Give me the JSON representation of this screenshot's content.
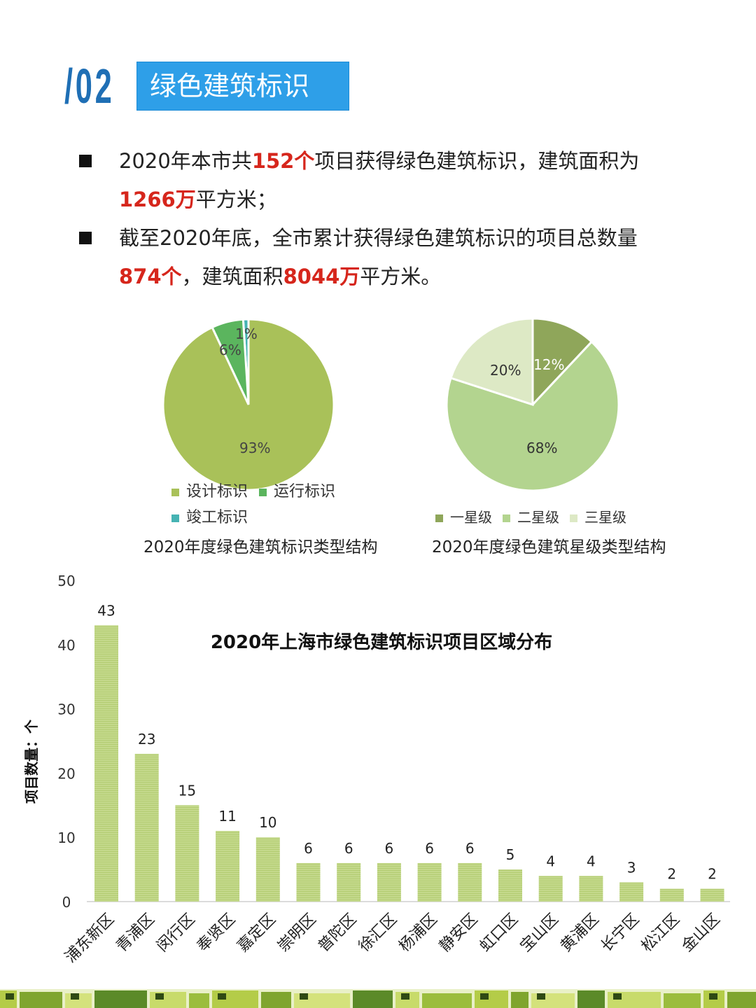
{
  "header": {
    "section_number": "/02",
    "section_title": "绿色建筑标识"
  },
  "paragraphs": [
    {
      "line1_pre": "2020年本市共",
      "line1_hl": "152个",
      "line1_post": "项目获得绿色建筑标识，建筑面积为",
      "line2_hl": "1266万",
      "line2_post": "平方米；"
    },
    {
      "line1": "截至2020年底，全市累计获得绿色建筑标识的项目总数量",
      "line2_hl1": "874个",
      "line2_mid": "，建筑面积",
      "line2_hl2": "8044万",
      "line2_post": "平方米。"
    }
  ],
  "chart_data": [
    {
      "type": "pie",
      "title": "2020年度绿色建筑标识类型结构",
      "slices": [
        {
          "name": "设计标识",
          "value": 93,
          "label": "93%",
          "color": "#a9c159"
        },
        {
          "name": "运行标识",
          "value": 6,
          "label": "6%",
          "color": "#5bb55e"
        },
        {
          "name": "竣工标识",
          "value": 1,
          "label": "1%",
          "color": "#46b3b3"
        }
      ],
      "legend": [
        "设计标识",
        "运行标识",
        "竣工标识"
      ]
    },
    {
      "type": "pie",
      "title": "2020年度绿色建筑星级类型结构",
      "slices": [
        {
          "name": "一星级",
          "value": 12,
          "label": "12%",
          "color": "#8fa65a"
        },
        {
          "name": "二星级",
          "value": 68,
          "label": "68%",
          "color": "#b3d48f"
        },
        {
          "name": "三星级",
          "value": 20,
          "label": "20%",
          "color": "#dde9c5"
        }
      ],
      "legend": [
        "一星级",
        "二星级",
        "三星级"
      ]
    },
    {
      "type": "bar",
      "title": "2020年上海市绿色建筑标识项目区域分布",
      "ylabel": "项目数量：个",
      "xlabel": "",
      "ylim": [
        0,
        50
      ],
      "yticks": [
        "0",
        "10",
        "20",
        "30",
        "40",
        "50"
      ],
      "categories": [
        "浦东新区",
        "青浦区",
        "闵行区",
        "奉贤区",
        "嘉定区",
        "崇明区",
        "普陀区",
        "徐汇区",
        "杨浦区",
        "静安区",
        "虹口区",
        "宝山区",
        "黄浦区",
        "长宁区",
        "松江区",
        "金山区"
      ],
      "values": [
        43,
        23,
        15,
        11,
        10,
        6,
        6,
        6,
        6,
        6,
        5,
        4,
        4,
        3,
        2,
        2
      ],
      "bar_color": "#c4d98c"
    }
  ]
}
